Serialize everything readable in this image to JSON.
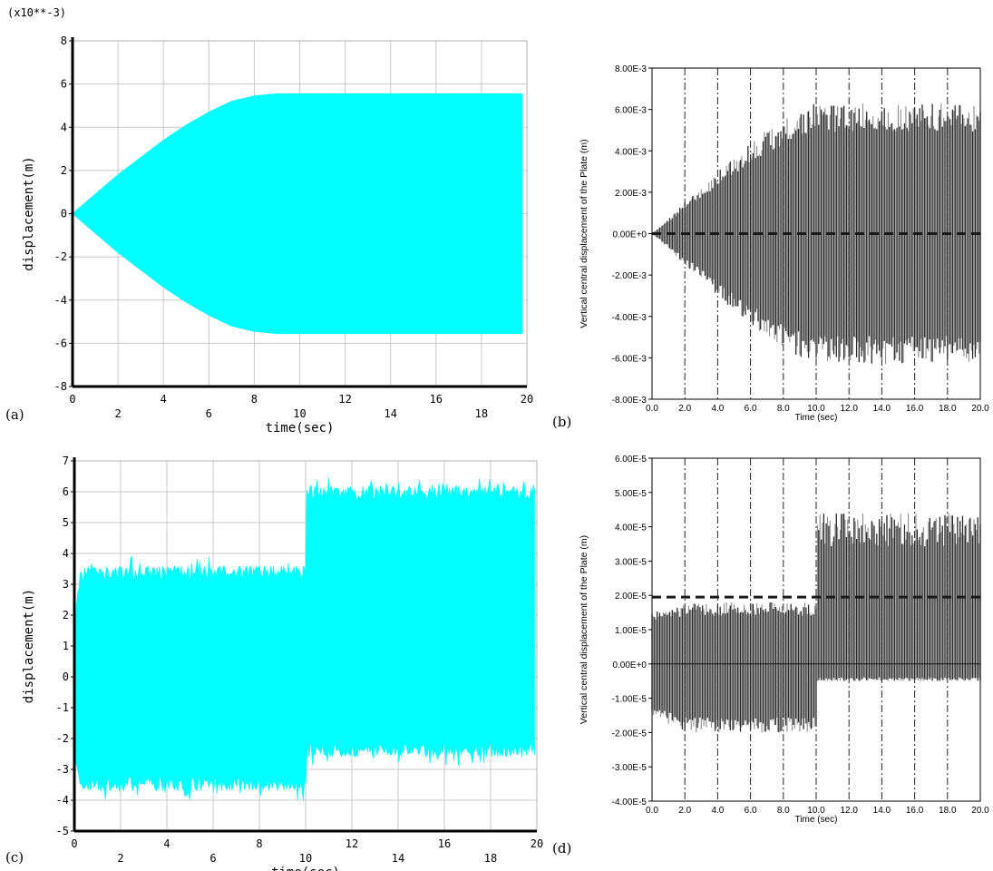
{
  "panel_labels": {
    "a": "(a)",
    "b": "(b)",
    "c": "(c)",
    "d": "(d)"
  },
  "colors": {
    "cyan_fill": "#00ffff",
    "dark_signal": "#2a2a2a",
    "gray_signal": "#8a8a8a",
    "grid": "#c8c8c8",
    "axis": "#000000"
  },
  "chart_data": [
    {
      "id": "a",
      "type": "area",
      "title": "",
      "xlabel": "time(sec)",
      "ylabel": "displacement(m)",
      "scale_note": "(x10**-3)",
      "xlim": [
        0,
        20
      ],
      "ylim": [
        -8,
        8
      ],
      "x_ticks_top": [
        "0",
        "4",
        "8",
        "12",
        "16",
        "20"
      ],
      "x_ticks_bottom": [
        "2",
        "6",
        "10",
        "14",
        "18"
      ],
      "y_ticks": [
        "-8",
        "-6",
        "-4",
        "-2",
        "0",
        "2",
        "4",
        "6",
        "8"
      ],
      "grid": true,
      "series": [
        {
          "style": "oscillation-envelope",
          "color": "#00ffff",
          "x": [
            0,
            1,
            2,
            3,
            4,
            5,
            6,
            7,
            8,
            9,
            9.6,
            10,
            12,
            14,
            16,
            18,
            19.8
          ],
          "upper": [
            0,
            0.9,
            1.8,
            2.6,
            3.4,
            4.1,
            4.7,
            5.2,
            5.45,
            5.55,
            5.55,
            5.55,
            5.55,
            5.55,
            5.55,
            5.55,
            5.55
          ],
          "lower": [
            0,
            -0.9,
            -1.8,
            -2.6,
            -3.4,
            -4.1,
            -4.7,
            -5.2,
            -5.45,
            -5.55,
            -5.55,
            -5.55,
            -5.55,
            -5.55,
            -5.55,
            -5.55,
            -5.55
          ]
        }
      ]
    },
    {
      "id": "b",
      "type": "line",
      "title": "",
      "xlabel": "Time (sec)",
      "ylabel": "Vertical central displacement of the Plate (m)",
      "xlim": [
        0,
        20
      ],
      "ylim": [
        -0.008,
        0.008
      ],
      "x_ticks": [
        "0.0",
        "2.0",
        "4.0",
        "6.0",
        "8.0",
        "10.0",
        "12.0",
        "14.0",
        "16.0",
        "18.0",
        "20.0"
      ],
      "y_ticks": [
        "-8.00E-3",
        "-6.00E-3",
        "-4.00E-3",
        "-2.00E-3",
        "0.00E+0",
        "2.00E-3",
        "4.00E-3",
        "6.00E-3",
        "8.00E-3"
      ],
      "grid": "vertical dash-dot",
      "series": [
        {
          "style": "oscillation-envelope",
          "color": "#2a2a2a",
          "x": [
            0,
            1,
            2,
            3,
            4,
            5,
            6,
            7,
            8,
            9,
            10,
            12,
            14,
            16,
            18,
            20
          ],
          "upper": [
            0,
            0.0007,
            0.0015,
            0.0022,
            0.003,
            0.0037,
            0.0044,
            0.005,
            0.0055,
            0.006,
            0.0063,
            0.0063,
            0.0063,
            0.0063,
            0.0063,
            0.0063
          ],
          "lower": [
            0,
            -0.0007,
            -0.0015,
            -0.0022,
            -0.003,
            -0.0037,
            -0.0044,
            -0.005,
            -0.0055,
            -0.006,
            -0.0063,
            -0.0063,
            -0.0063,
            -0.0063,
            -0.0063,
            -0.0063
          ]
        },
        {
          "style": "dashed-reference",
          "color": "#1a1a1a",
          "x": [
            0,
            20
          ],
          "y": [
            0,
            0
          ]
        }
      ]
    },
    {
      "id": "c",
      "type": "area",
      "title": "",
      "xlabel": "time(sec)",
      "ylabel": "displacement(m)",
      "xlim": [
        0,
        20
      ],
      "ylim": [
        -5,
        7
      ],
      "x_ticks_top": [
        "0",
        "4",
        "8",
        "12",
        "16",
        "20"
      ],
      "x_ticks_bottom": [
        "2",
        "6",
        "10",
        "14",
        "18"
      ],
      "y_ticks": [
        "-5",
        "-4",
        "-3",
        "-2",
        "-1",
        "0",
        "1",
        "2",
        "3",
        "4",
        "5",
        "6",
        "7"
      ],
      "grid": true,
      "series": [
        {
          "style": "oscillation-envelope",
          "color": "#00ffff",
          "x": [
            0,
            0.2,
            0.4,
            10,
            10.01,
            19.9
          ],
          "upper": [
            1.5,
            3.3,
            3.6,
            3.6,
            6.2,
            6.2
          ],
          "lower": [
            -3.0,
            -3.5,
            -3.7,
            -3.7,
            -2.6,
            -2.6
          ]
        }
      ]
    },
    {
      "id": "d",
      "type": "line",
      "title": "",
      "xlabel": "Time (sec)",
      "ylabel": "Vertical central displacement of the Plate (m)",
      "xlim": [
        0,
        20
      ],
      "ylim": [
        -4e-05,
        6e-05
      ],
      "x_ticks": [
        "0.0",
        "2.0",
        "4.0",
        "6.0",
        "8.0",
        "10.0",
        "12.0",
        "14.0",
        "16.0",
        "18.0",
        "20.0"
      ],
      "y_ticks": [
        "-4.00E-5",
        "-3.00E-5",
        "-2.00E-5",
        "-1.00E-5",
        "0.00E+0",
        "1.00E-5",
        "2.00E-5",
        "3.00E-5",
        "4.00E-5",
        "5.00E-5",
        "6.00E-5"
      ],
      "grid": "vertical dash-dot",
      "series": [
        {
          "style": "oscillation-envelope",
          "color": "#2a2a2a",
          "x": [
            0,
            2,
            4,
            6,
            8,
            10,
            10.01,
            12,
            14,
            16,
            18,
            20
          ],
          "upper": [
            1.5e-05,
            1.8e-05,
            1.8e-05,
            1.8e-05,
            1.8e-05,
            1.8e-05,
            4.4e-05,
            4.4e-05,
            4.4e-05,
            4.4e-05,
            4.4e-05,
            4.4e-05
          ],
          "lower": [
            -1.5e-05,
            -2e-05,
            -2e-05,
            -2e-05,
            -2e-05,
            -2e-05,
            -5e-06,
            -5e-06,
            -5e-06,
            -5e-06,
            -5e-06,
            -5e-06
          ]
        },
        {
          "style": "dashed-reference",
          "color": "#1a1a1a",
          "x": [
            0,
            20
          ],
          "y": [
            1.95e-05,
            1.95e-05
          ]
        }
      ]
    }
  ]
}
